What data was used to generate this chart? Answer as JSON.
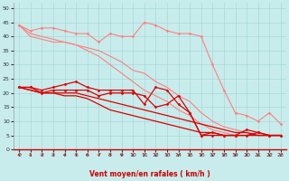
{
  "xlabel": "Vent moyen/en rafales ( km/h )",
  "background_color": "#c8ecec",
  "grid_color": "#a8d8d8",
  "x": [
    0,
    1,
    2,
    3,
    4,
    5,
    6,
    7,
    8,
    9,
    10,
    11,
    12,
    13,
    14,
    15,
    16,
    17,
    18,
    19,
    20,
    21,
    22,
    23
  ],
  "series": [
    {
      "y": [
        44,
        42,
        43,
        43,
        42,
        41,
        41,
        38,
        41,
        40,
        40,
        45,
        44,
        42,
        41,
        41,
        40,
        30,
        21,
        13,
        12,
        10,
        13,
        9
      ],
      "color": "#ff8080",
      "marker": "D",
      "markersize": 1.5,
      "linewidth": 0.8
    },
    {
      "y": [
        44,
        40,
        39,
        38,
        38,
        37,
        36,
        35,
        33,
        31,
        28,
        27,
        24,
        22,
        19,
        17,
        13,
        10,
        8,
        7,
        6,
        5,
        5,
        5
      ],
      "color": "#ff8080",
      "marker": null,
      "markersize": 0,
      "linewidth": 0.8
    },
    {
      "y": [
        44,
        41,
        40,
        39,
        38,
        37,
        35,
        33,
        30,
        27,
        24,
        21,
        19,
        17,
        14,
        12,
        9,
        7,
        6,
        5,
        5,
        5,
        5,
        5
      ],
      "color": "#ff8080",
      "marker": null,
      "markersize": 0,
      "linewidth": 0.8
    },
    {
      "y": [
        22,
        22,
        21,
        22,
        23,
        24,
        22,
        21,
        21,
        21,
        21,
        16,
        22,
        21,
        16,
        13,
        5,
        5,
        5,
        5,
        7,
        6,
        5,
        5
      ],
      "color": "#dd0000",
      "marker": "D",
      "markersize": 1.5,
      "linewidth": 0.9
    },
    {
      "y": [
        22,
        22,
        20,
        21,
        21,
        21,
        21,
        19,
        20,
        20,
        20,
        19,
        15,
        16,
        19,
        13,
        5,
        6,
        5,
        5,
        5,
        6,
        5,
        5
      ],
      "color": "#dd0000",
      "marker": "D",
      "markersize": 1.5,
      "linewidth": 0.9
    },
    {
      "y": [
        22,
        21,
        20,
        20,
        20,
        20,
        19,
        18,
        17,
        16,
        15,
        14,
        13,
        12,
        11,
        10,
        9,
        8,
        7,
        6,
        6,
        5,
        5,
        5
      ],
      "color": "#dd0000",
      "marker": null,
      "markersize": 0,
      "linewidth": 0.9
    },
    {
      "y": [
        22,
        21,
        20,
        20,
        19,
        19,
        18,
        16,
        14,
        13,
        12,
        11,
        10,
        9,
        8,
        7,
        6,
        6,
        5,
        5,
        5,
        5,
        5,
        5
      ],
      "color": "#dd0000",
      "marker": null,
      "markersize": 0,
      "linewidth": 0.9
    }
  ],
  "xlim": [
    -0.5,
    23.5
  ],
  "ylim": [
    0,
    52
  ],
  "yticks": [
    0,
    5,
    10,
    15,
    20,
    25,
    30,
    35,
    40,
    45,
    50
  ],
  "xticks": [
    0,
    1,
    2,
    3,
    4,
    5,
    6,
    7,
    8,
    9,
    10,
    11,
    12,
    13,
    14,
    15,
    16,
    17,
    18,
    19,
    20,
    21,
    22,
    23
  ],
  "arrow_color": "#cc0000",
  "xlabel_color": "#cc0000",
  "tick_fontsize": 4.5,
  "xlabel_fontsize": 5.5
}
